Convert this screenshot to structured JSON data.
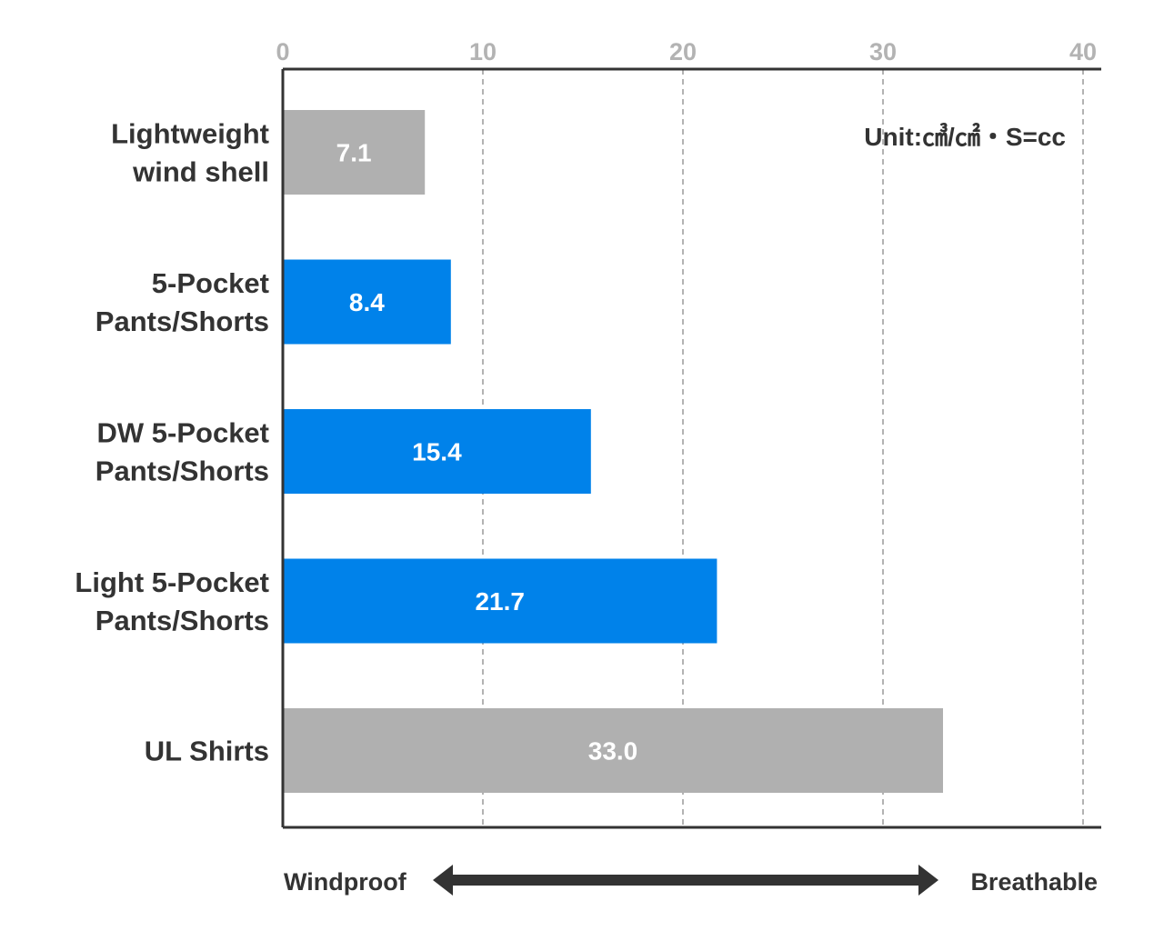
{
  "chart_data": {
    "type": "bar",
    "orientation": "horizontal",
    "categories": [
      [
        "Lightweight",
        "wind shell"
      ],
      [
        "5-Pocket",
        "Pants/Shorts"
      ],
      [
        "DW 5-Pocket",
        "Pants/Shorts"
      ],
      [
        "Light 5-Pocket",
        "Pants/Shorts"
      ],
      [
        "UL Shirts"
      ]
    ],
    "values": [
      7.1,
      8.4,
      15.4,
      21.7,
      33.0
    ],
    "value_labels": [
      "7.1",
      "8.4",
      "15.4",
      "21.7",
      "33.0"
    ],
    "bar_colors": [
      "#b0b0b0",
      "#0082ea",
      "#0082ea",
      "#0082ea",
      "#b0b0b0"
    ],
    "xlim": [
      0,
      40
    ],
    "xticks": [
      "0",
      "10",
      "20",
      "30",
      "40"
    ],
    "x_axis_position": "top",
    "grid": "vertical-dashed",
    "unit_note": "Unit:㎤/㎠・S=cc",
    "scale_left_label": "Windproof",
    "scale_right_label": "Breathable"
  },
  "colors": {
    "axis": "#333333",
    "grid": "#b3b3b3",
    "arrow": "#333333"
  }
}
